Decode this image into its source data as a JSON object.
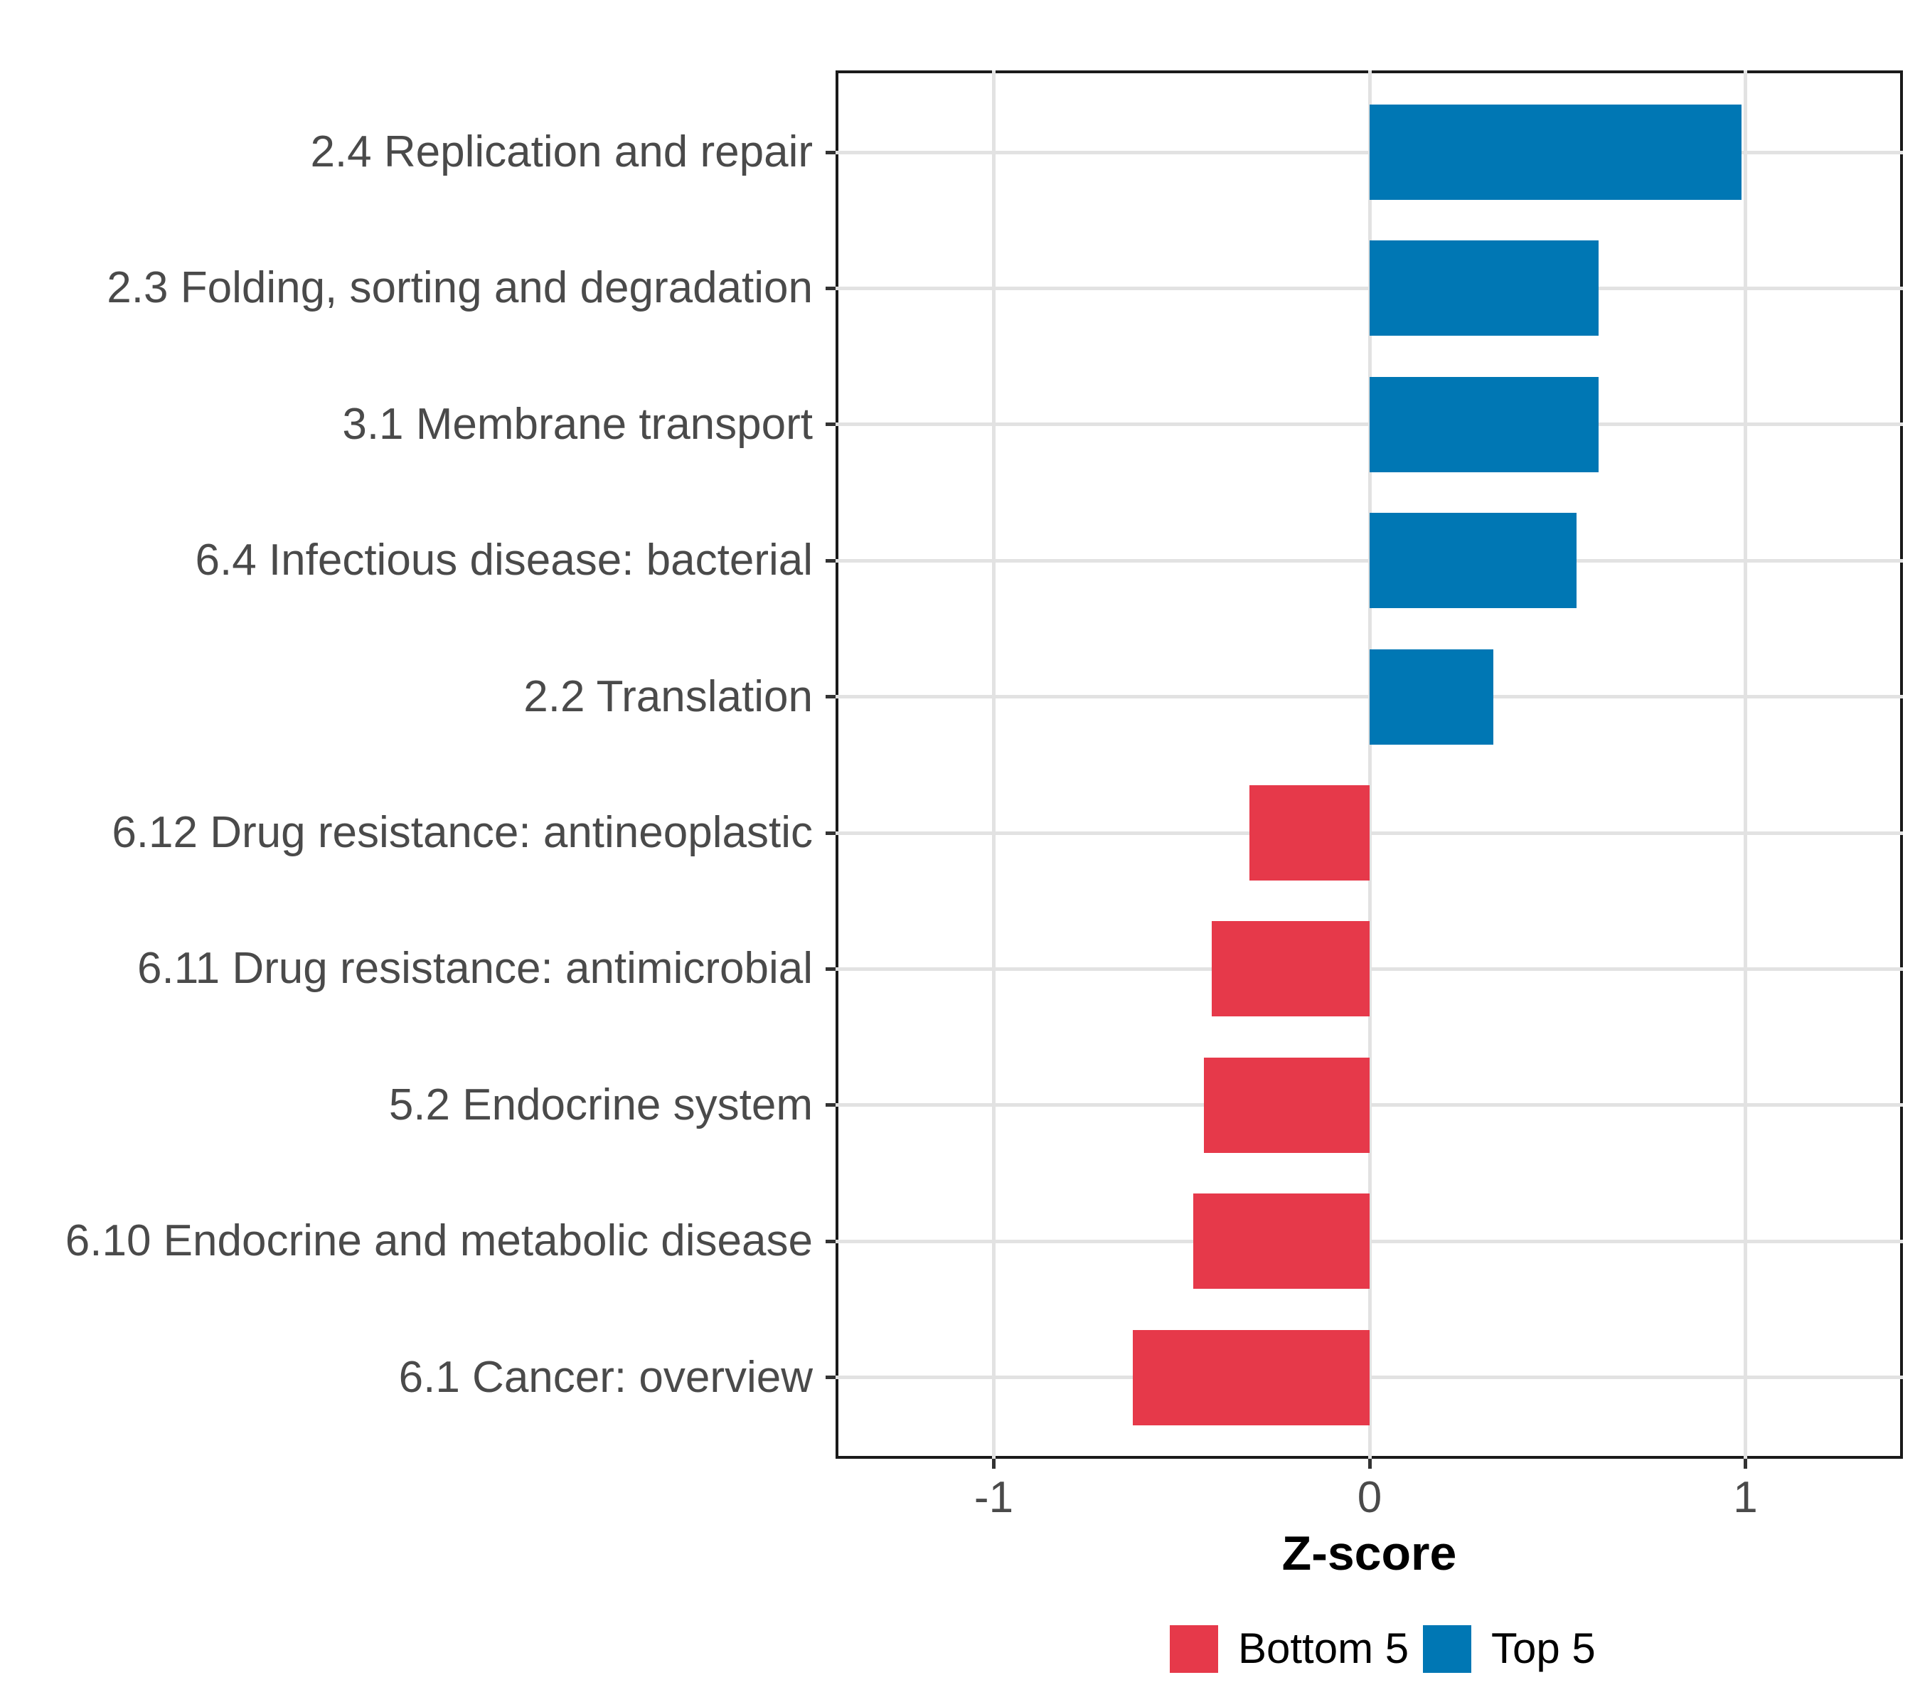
{
  "chart_data": {
    "type": "bar",
    "orientation": "horizontal",
    "title": "",
    "xlabel": "Z-score",
    "ylabel": "",
    "xlim": [
      -1.42,
      1.42
    ],
    "grid": "major-vertical-and-row-lines",
    "legend_position": "bottom",
    "categories": [
      "2.4 Replication and repair",
      "2.3 Folding, sorting and degradation",
      "3.1 Membrane transport",
      "6.4 Infectious disease: bacterial",
      "2.2 Translation",
      "6.12 Drug resistance: antineoplastic",
      "6.11 Drug resistance: antimicrobial",
      "5.2 Endocrine system",
      "6.10 Endocrine and metabolic disease",
      "6.1 Cancer: overview"
    ],
    "values": [
      0.99,
      0.61,
      0.61,
      0.55,
      0.33,
      -0.32,
      -0.42,
      -0.44,
      -0.47,
      -0.63
    ],
    "groups": [
      "Top 5",
      "Top 5",
      "Top 5",
      "Top 5",
      "Top 5",
      "Bottom 5",
      "Bottom 5",
      "Bottom 5",
      "Bottom 5",
      "Bottom 5"
    ],
    "x_ticks": [
      {
        "value": -1,
        "label": "-1"
      },
      {
        "value": 0,
        "label": "0"
      },
      {
        "value": 1,
        "label": "1"
      }
    ],
    "series_colors": {
      "Bottom 5": "#e6394a",
      "Top 5": "#0077b4"
    }
  },
  "axis": {
    "x_title": "Z-score"
  },
  "legend": {
    "items": [
      {
        "label": "Bottom 5",
        "color": "#e6394a"
      },
      {
        "label": "Top 5",
        "color": "#0077b4"
      }
    ]
  }
}
